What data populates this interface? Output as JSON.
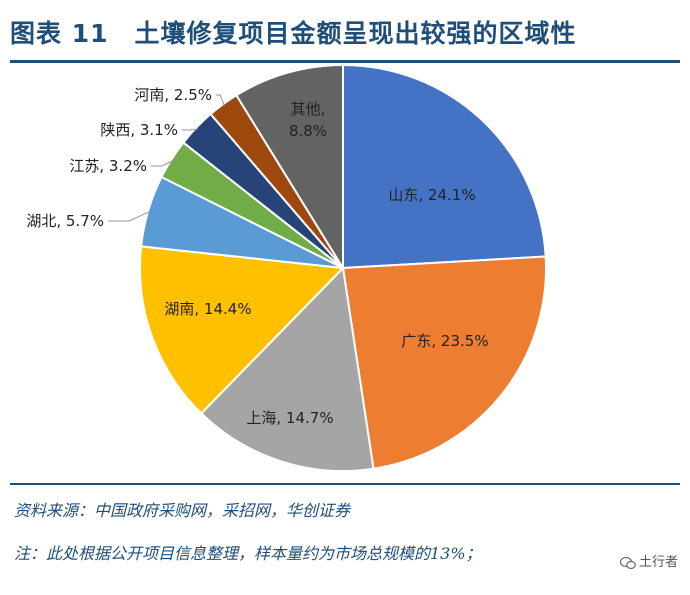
{
  "figure": {
    "title": "图表 11　土壤修复项目金额呈现出较强的区域性",
    "source": "资料来源：中国政府采购网，采招网，华创证券",
    "note": "注：此处根据公开项目信息整理，样本量约为市场总规模的13%；",
    "watermark": "土行者"
  },
  "colors": {
    "title": "#1f4e79",
    "rule": "#1f4e79"
  },
  "chart_data": {
    "type": "pie",
    "title": "",
    "start_angle_deg": 0,
    "direction": "clockwise",
    "slices": [
      {
        "category": "山东",
        "value": 24.1,
        "label": "山东, 24.1%",
        "color": "#4472c4"
      },
      {
        "category": "广东",
        "value": 23.5,
        "label": "广东, 23.5%",
        "color": "#ed7d31"
      },
      {
        "category": "上海",
        "value": 14.7,
        "label": "上海, 14.7%",
        "color": "#a5a5a5"
      },
      {
        "category": "湖南",
        "value": 14.4,
        "label": "湖南, 14.4%",
        "color": "#ffc000"
      },
      {
        "category": "湖北",
        "value": 5.7,
        "label": "湖北, 5.7%",
        "color": "#5b9bd5"
      },
      {
        "category": "江苏",
        "value": 3.2,
        "label": "江苏, 3.2%",
        "color": "#70ad47"
      },
      {
        "category": "陕西",
        "value": 3.1,
        "label": "陕西, 3.1%",
        "color": "#264478"
      },
      {
        "category": "河南",
        "value": 2.5,
        "label": "河南, 2.5%",
        "color": "#9e480e"
      },
      {
        "category": "其他",
        "value": 8.8,
        "label_lines": [
          "其他,",
          "8.8%"
        ],
        "color": "#636363"
      }
    ]
  }
}
